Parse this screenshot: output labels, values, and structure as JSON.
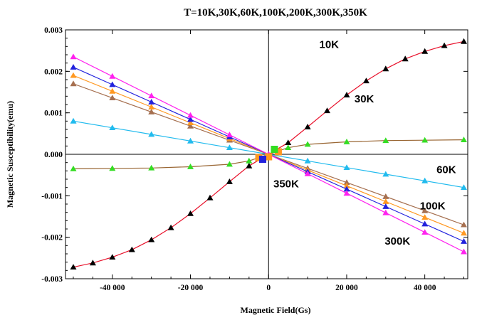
{
  "chart_data": {
    "type": "scatter",
    "title": "T=10K,30K,60K,100K,200K,300K,350K",
    "xlabel": "Magnetic Field(Gs)",
    "ylabel": "Magnetic Susceptibility(emu)",
    "xlim": [
      -52000,
      51000
    ],
    "ylim": [
      -0.003,
      0.003
    ],
    "x_ticks": [
      {
        "value": -40000,
        "label": "-40 000"
      },
      {
        "value": -20000,
        "label": "-20 000"
      },
      {
        "value": 0,
        "label": "0"
      },
      {
        "value": 20000,
        "label": "20 000"
      },
      {
        "value": 40000,
        "label": "40 000"
      }
    ],
    "y_ticks": [
      {
        "value": 0.003,
        "label": "0.003"
      },
      {
        "value": 0.002,
        "label": "0.002"
      },
      {
        "value": 0.001,
        "label": "0.001"
      },
      {
        "value": 0.0,
        "label": "0.000"
      },
      {
        "value": -0.001,
        "label": "-0.001"
      },
      {
        "value": -0.002,
        "label": "-0.002"
      },
      {
        "value": -0.003,
        "label": "-0.003"
      }
    ],
    "grid": false,
    "annotations": [
      {
        "text": "10K",
        "x": 15500,
        "y": 0.00256
      },
      {
        "text": "30K",
        "x": 24500,
        "y": 0.00125
      },
      {
        "text": "60K",
        "x": 45500,
        "y": -0.00045
      },
      {
        "text": "100K",
        "x": 42000,
        "y": -0.00133
      },
      {
        "text": "300K",
        "x": 33000,
        "y": -0.00218
      },
      {
        "text": "350K",
        "x": 4500,
        "y": -0.0008
      }
    ],
    "series": [
      {
        "color": "#000000",
        "marker": "triangle",
        "line_color": "#e8102a",
        "x": [
          -50000,
          -45000,
          -40000,
          -35000,
          -30000,
          -25000,
          -20000,
          -15000,
          -10000,
          -5000,
          0,
          5000,
          10000,
          15000,
          20000,
          25000,
          30000,
          35000,
          40000,
          45000,
          50000
        ],
        "y": [
          -0.00272,
          -0.00262,
          -0.00248,
          -0.0023,
          -0.00206,
          -0.00177,
          -0.00143,
          -0.00105,
          -0.00066,
          -0.00028,
          0.0,
          0.00028,
          0.00066,
          0.00105,
          0.00143,
          0.00177,
          0.00206,
          0.0023,
          0.00248,
          0.00262,
          0.00272
        ]
      },
      {
        "color": "#33dd22",
        "marker": "triangle",
        "line_color": "#996633",
        "x": [
          -50000,
          -40000,
          -30000,
          -20000,
          -10000,
          -5000,
          0,
          5000,
          10000,
          20000,
          30000,
          40000,
          50000
        ],
        "y": [
          -0.00035,
          -0.00034,
          -0.00033,
          -0.0003,
          -0.00024,
          -0.00016,
          0.0,
          0.00016,
          0.00024,
          0.0003,
          0.00033,
          0.00034,
          0.00035
        ]
      },
      {
        "color": "#22bbee",
        "marker": "triangle",
        "line_color": "#22bbee",
        "x": [
          -50000,
          -40000,
          -30000,
          -20000,
          -10000,
          0,
          10000,
          20000,
          30000,
          40000,
          50000
        ],
        "y": [
          0.0008,
          0.00064,
          0.00048,
          0.00032,
          0.00016,
          0.0,
          -0.00016,
          -0.00032,
          -0.00048,
          -0.00064,
          -0.0008
        ]
      },
      {
        "color": "#a67050",
        "marker": "triangle",
        "line_color": "#a67050",
        "x": [
          -50000,
          -40000,
          -30000,
          -20000,
          -10000,
          0,
          10000,
          20000,
          30000,
          40000,
          50000
        ],
        "y": [
          0.0017,
          0.00136,
          0.00102,
          0.00068,
          0.00034,
          0.0,
          -0.00034,
          -0.00068,
          -0.00102,
          -0.00136,
          -0.0017
        ]
      },
      {
        "color": "#ff9922",
        "marker": "triangle",
        "line_color": "#ff9922",
        "x": [
          -50000,
          -40000,
          -30000,
          -20000,
          -10000,
          0,
          10000,
          20000,
          30000,
          40000,
          50000
        ],
        "y": [
          0.0019,
          0.00152,
          0.00114,
          0.00076,
          0.00038,
          0.0,
          -0.00038,
          -0.00076,
          -0.00114,
          -0.00152,
          -0.0019
        ]
      },
      {
        "color": "#2222dd",
        "marker": "triangle",
        "line_color": "#2222dd",
        "x": [
          -50000,
          -40000,
          -30000,
          -20000,
          -10000,
          0,
          10000,
          20000,
          30000,
          40000,
          50000
        ],
        "y": [
          0.0021,
          0.00168,
          0.00126,
          0.00084,
          0.00042,
          0.0,
          -0.00042,
          -0.00084,
          -0.00126,
          -0.00168,
          -0.0021
        ]
      },
      {
        "color": "#ff22ee",
        "marker": "triangle",
        "line_color": "#ff22ee",
        "x": [
          -50000,
          -40000,
          -30000,
          -20000,
          -10000,
          0,
          10000,
          20000,
          30000,
          40000,
          50000
        ],
        "y": [
          0.00235,
          0.00188,
          0.00141,
          0.00094,
          0.00047,
          0.0,
          -0.00047,
          -0.00094,
          -0.00141,
          -0.00188,
          -0.00235
        ]
      }
    ]
  }
}
